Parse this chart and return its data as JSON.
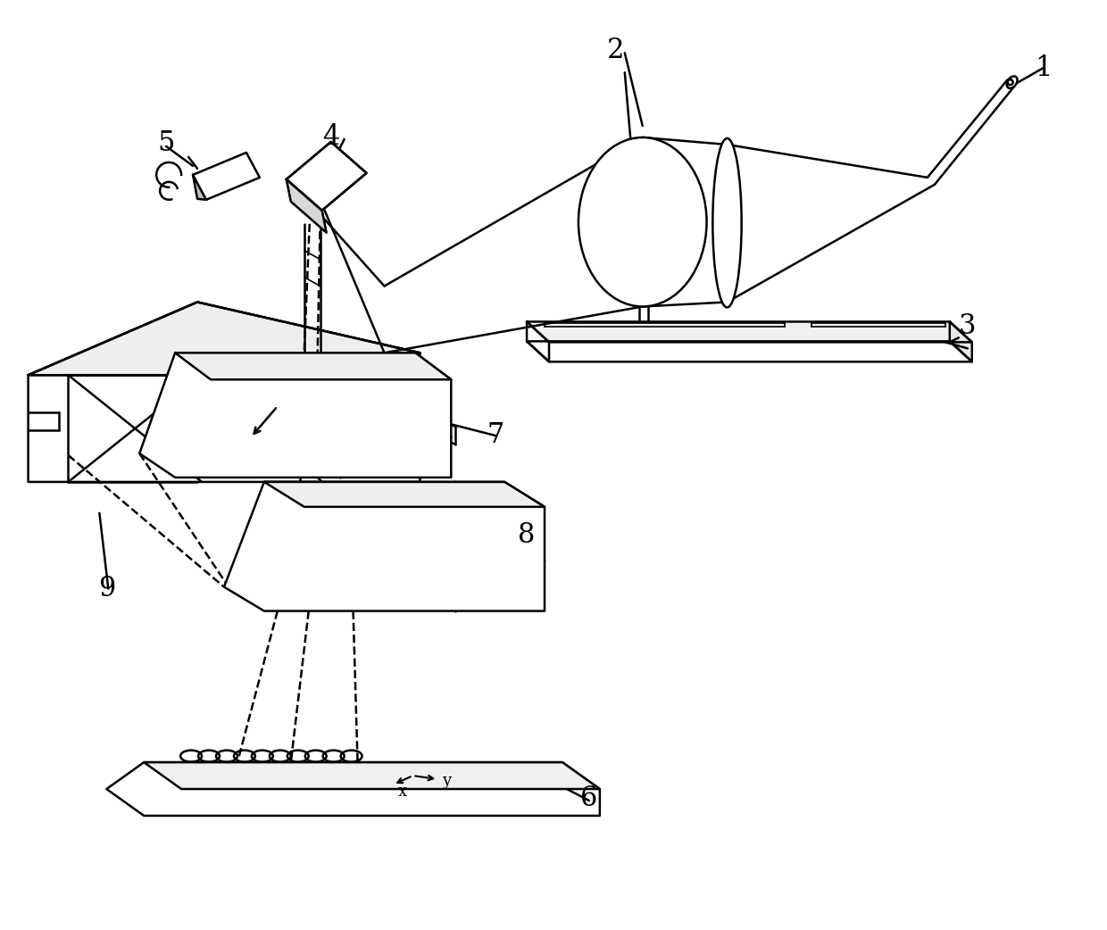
{
  "bg_color": "#ffffff",
  "lc": "#000000",
  "lw": 1.8,
  "lw_thin": 1.2,
  "figsize": [
    12.4,
    10.42
  ],
  "dpi": 100,
  "label_fontsize": 22
}
